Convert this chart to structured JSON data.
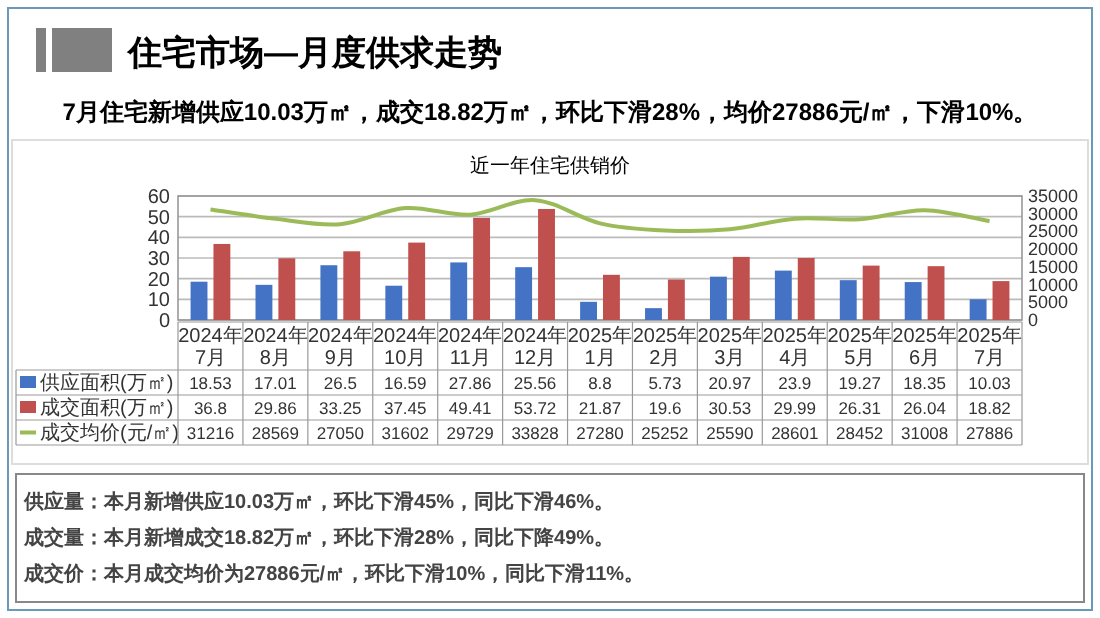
{
  "chart_data": {
    "type": "bar",
    "title": "住宅市场—月度供求走势",
    "subtitle": "7月住宅新增供应10.03万㎡，成交18.82万㎡，环比下滑28%，均价27886元/㎡，下滑10%。",
    "categories": [
      "2024年7月",
      "2024年8月",
      "2024年9月",
      "2024年10月",
      "2024年11月",
      "2024年12月",
      "2025年1月",
      "2025年2月",
      "2025年3月",
      "2025年4月",
      "2025年5月",
      "2025年6月",
      "2025年7月"
    ],
    "series": [
      {
        "name": "供应面积(万㎡)",
        "color": "#4472c4",
        "values": [
          18.53,
          17.01,
          26.5,
          16.59,
          27.86,
          25.56,
          8.8,
          5.73,
          20.97,
          23.9,
          19.27,
          18.35,
          10.03
        ]
      },
      {
        "name": "成交面积(万㎡)",
        "color": "#c0504d",
        "values": [
          36.8,
          29.86,
          33.25,
          37.45,
          49.41,
          53.72,
          21.87,
          19.6,
          30.53,
          29.99,
          26.31,
          26.04,
          18.82
        ]
      },
      {
        "name": "成交均价(元/㎡)",
        "color": "#9bbb59",
        "type": "line",
        "axis": "y2",
        "values": [
          31216,
          28569,
          27050,
          31602,
          29729,
          33828,
          27280,
          25252,
          25590,
          28601,
          28452,
          31008,
          27886
        ]
      }
    ],
    "ylim": [
      0,
      60
    ],
    "yticks": [
      0,
      10,
      20,
      30,
      40,
      50,
      60
    ],
    "y2lim": [
      0,
      35000
    ],
    "y2ticks": [
      0,
      5000,
      10000,
      15000,
      20000,
      25000,
      30000,
      35000
    ],
    "grid": "y",
    "data_labels": true,
    "legend": "bottom left",
    "annotations": [
      "近一年住宅供销价",
      "供应量：本月新增供应10.03万㎡，环比下滑45%，同比下滑46%。",
      "成交量：本月新增成交18.82万㎡，环比下滑28%，同比下降49%。",
      "成交价：本月成交均价为27886元/㎡，环比下滑10%，同比下滑11%。"
    ]
  }
}
